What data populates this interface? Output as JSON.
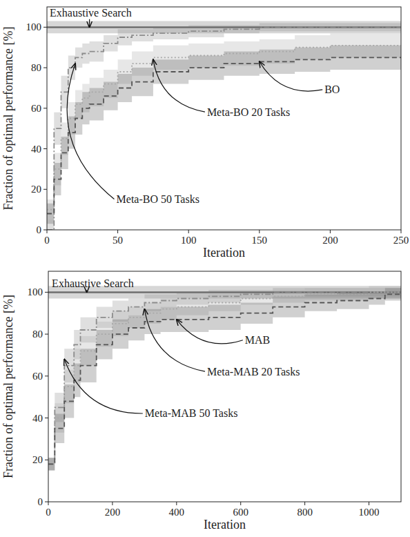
{
  "chart_data": [
    {
      "type": "line",
      "x_label": "Iteration",
      "y_label": "Fraction of optimal performance [%]",
      "x": [
        0,
        5,
        10,
        15,
        20,
        25,
        30,
        40,
        50,
        60,
        75,
        100,
        125,
        150,
        175,
        200,
        225,
        250
      ],
      "xlim": [
        0,
        250
      ],
      "ylim": [
        0,
        110
      ],
      "xticks": [
        0,
        50,
        100,
        150,
        200,
        250
      ],
      "yticks": [
        0,
        20,
        40,
        60,
        80,
        100
      ],
      "series": [
        {
          "name": "Exhaustive Search",
          "color": "#6e6e6e",
          "line_style": "solid",
          "values": [
            100,
            100,
            100,
            100,
            100,
            100,
            100,
            100,
            100,
            100,
            100,
            100,
            100,
            100,
            100,
            100,
            100,
            100
          ],
          "error": [
            3,
            3,
            3,
            3,
            3,
            3,
            3,
            3,
            3,
            3,
            3,
            3,
            3,
            3,
            3,
            3,
            3,
            3
          ]
        },
        {
          "name": "Meta-BO 50 Tasks",
          "color": "#8c8c8c",
          "line_style": "dashdot",
          "values": [
            0,
            50,
            68,
            80,
            85,
            87,
            88,
            92,
            95,
            96,
            97,
            98,
            99,
            100,
            100,
            100,
            100,
            100
          ],
          "error": [
            5,
            8,
            8,
            6,
            5,
            5,
            5,
            4,
            4,
            3,
            3,
            3,
            2,
            2,
            2,
            2,
            2,
            2
          ]
        },
        {
          "name": "Meta-BO 20 Tasks",
          "color": "#a8a8a8",
          "line_style": "dotted",
          "values": [
            10,
            30,
            45,
            55,
            62,
            65,
            68,
            72,
            78,
            82,
            85,
            86,
            87,
            88,
            90,
            91,
            91,
            91
          ],
          "error": [
            5,
            8,
            8,
            8,
            7,
            7,
            7,
            7,
            6,
            6,
            6,
            6,
            6,
            6,
            6,
            6,
            6,
            6
          ]
        },
        {
          "name": "BO",
          "color": "#555555",
          "line_style": "dashed",
          "values": [
            8,
            25,
            38,
            48,
            55,
            60,
            62,
            66,
            70,
            73,
            78,
            80,
            82,
            83,
            84,
            85,
            85,
            85
          ],
          "error": [
            5,
            8,
            8,
            8,
            8,
            8,
            8,
            7,
            7,
            7,
            6,
            6,
            6,
            6,
            6,
            6,
            6,
            6
          ]
        }
      ],
      "annotations": [
        {
          "text": "Exhaustive Search",
          "x": 30,
          "y": 100,
          "text_x": 2,
          "text_y": 107
        },
        {
          "text": "Meta-BO 50 Tasks",
          "x": 20,
          "y": 82,
          "text_x": 49,
          "text_y": 15
        },
        {
          "text": "Meta-BO 20 Tasks",
          "x": 75,
          "y": 84,
          "text_x": 113,
          "text_y": 58
        },
        {
          "text": "BO",
          "x": 150,
          "y": 83,
          "text_x": 196,
          "text_y": 69
        }
      ]
    },
    {
      "type": "line",
      "x_label": "Iteration",
      "y_label": "Fraction of optimal performance [%]",
      "x": [
        0,
        20,
        50,
        80,
        100,
        150,
        200,
        250,
        300,
        350,
        400,
        500,
        600,
        700,
        800,
        900,
        1000,
        1050,
        1100
      ],
      "xlim": [
        0,
        1100
      ],
      "ylim": [
        0,
        110
      ],
      "xticks": [
        0,
        200,
        400,
        600,
        800,
        1000
      ],
      "yticks": [
        0,
        20,
        40,
        60,
        80,
        100
      ],
      "series": [
        {
          "name": "Exhaustive Search",
          "color": "#6e6e6e",
          "line_style": "solid",
          "values": [
            100,
            100,
            100,
            100,
            100,
            100,
            100,
            100,
            100,
            100,
            100,
            100,
            100,
            100,
            100,
            100,
            100,
            100,
            100
          ],
          "error": [
            3,
            3,
            3,
            3,
            3,
            3,
            3,
            3,
            3,
            3,
            3,
            3,
            3,
            3,
            3,
            3,
            3,
            3,
            3
          ]
        },
        {
          "name": "Meta-MAB 50 Tasks",
          "color": "#8c8c8c",
          "line_style": "dashdot",
          "values": [
            18,
            45,
            65,
            75,
            82,
            88,
            91,
            93,
            95,
            96,
            97,
            98,
            99,
            100,
            100,
            100,
            100,
            100,
            100
          ],
          "error": [
            3,
            7,
            8,
            7,
            6,
            5,
            5,
            4,
            4,
            3,
            3,
            3,
            2,
            2,
            2,
            2,
            2,
            2,
            2
          ]
        },
        {
          "name": "Meta-MAB 20 Tasks",
          "color": "#a8a8a8",
          "line_style": "dotted",
          "values": [
            18,
            40,
            55,
            65,
            72,
            80,
            85,
            88,
            90,
            92,
            93,
            95,
            97,
            98,
            99,
            99,
            100,
            100,
            100
          ],
          "error": [
            3,
            7,
            8,
            8,
            7,
            6,
            6,
            5,
            5,
            5,
            4,
            4,
            3,
            3,
            3,
            3,
            3,
            3,
            3
          ]
        },
        {
          "name": "MAB",
          "color": "#555555",
          "line_style": "dashed",
          "values": [
            18,
            35,
            48,
            58,
            65,
            75,
            80,
            83,
            86,
            87,
            87,
            88,
            90,
            93,
            95,
            96,
            97,
            99,
            99
          ],
          "error": [
            3,
            7,
            8,
            8,
            8,
            7,
            7,
            6,
            6,
            6,
            6,
            6,
            5,
            5,
            4,
            4,
            3,
            3,
            3
          ]
        }
      ],
      "annotations": [
        {
          "text": "Exhaustive Search",
          "x": 120,
          "y": 100,
          "text_x": 11,
          "text_y": 104
        },
        {
          "text": "MAB",
          "x": 400,
          "y": 87,
          "text_x": 613,
          "text_y": 77
        },
        {
          "text": "Meta-MAB 20 Tasks",
          "x": 300,
          "y": 92,
          "text_x": 495,
          "text_y": 62
        },
        {
          "text": "Meta-MAB 50 Tasks",
          "x": 50,
          "y": 68,
          "text_x": 301,
          "text_y": 42
        }
      ]
    }
  ]
}
